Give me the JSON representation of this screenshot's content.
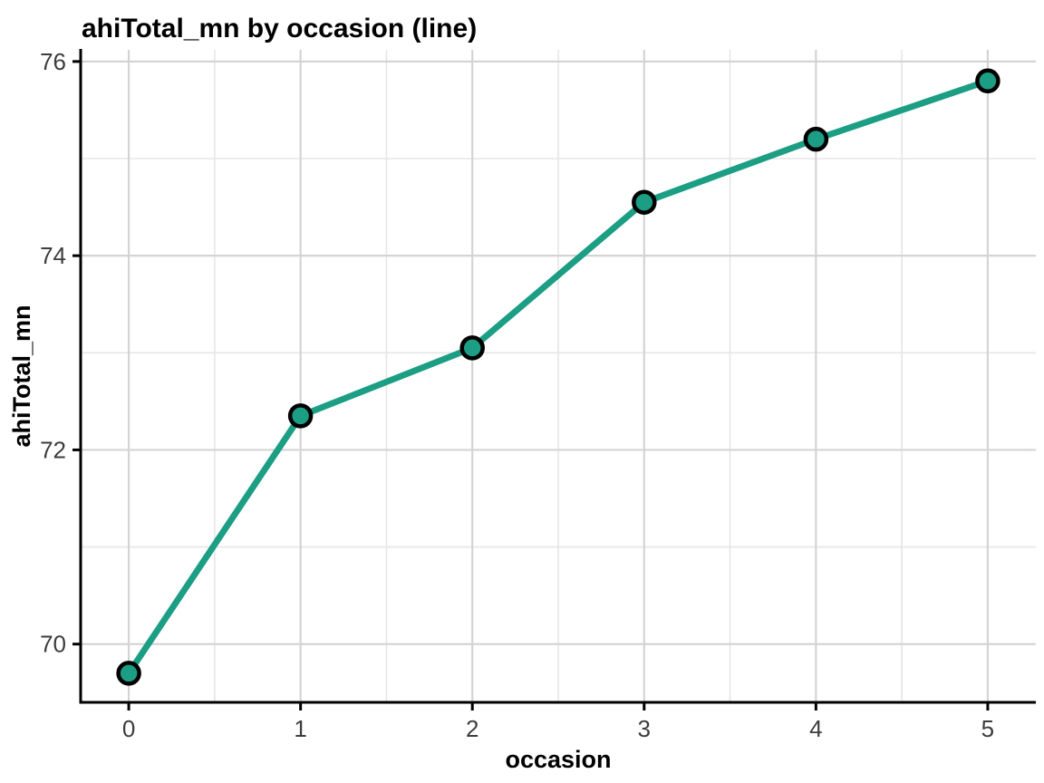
{
  "title": "ahiTotal_mn by occasion (line)",
  "chart_data": {
    "type": "line",
    "title": "ahiTotal_mn by occasion (line)",
    "xlabel": "occasion",
    "ylabel": "ahiTotal_mn",
    "x": [
      0,
      1,
      2,
      3,
      4,
      5
    ],
    "series": [
      {
        "name": "ahiTotal_mn",
        "values": [
          69.7,
          72.35,
          73.05,
          74.55,
          75.2,
          75.8
        ]
      }
    ],
    "x_ticks": [
      0,
      1,
      2,
      3,
      4,
      5
    ],
    "y_ticks": [
      70,
      72,
      74,
      76
    ],
    "x_minor_gridlines": [
      0.5,
      1.5,
      2.5,
      3.5,
      4.5
    ],
    "y_minor_gridlines": [
      71,
      73,
      75
    ],
    "xlim": [
      -0.28,
      5.28
    ],
    "ylim": [
      69.4,
      76.12
    ],
    "grid": true,
    "legend_position": "none",
    "colors": {
      "line": "#1B9E83",
      "point_fill": "#1B9E83",
      "point_stroke": "#000000",
      "grid_major": "#D4D4D4",
      "grid_minor": "#E6E6E6",
      "axis_line": "#000000",
      "tick_label": "#3d3d3d",
      "title_text": "#000000",
      "background": "#FFFFFF"
    }
  }
}
